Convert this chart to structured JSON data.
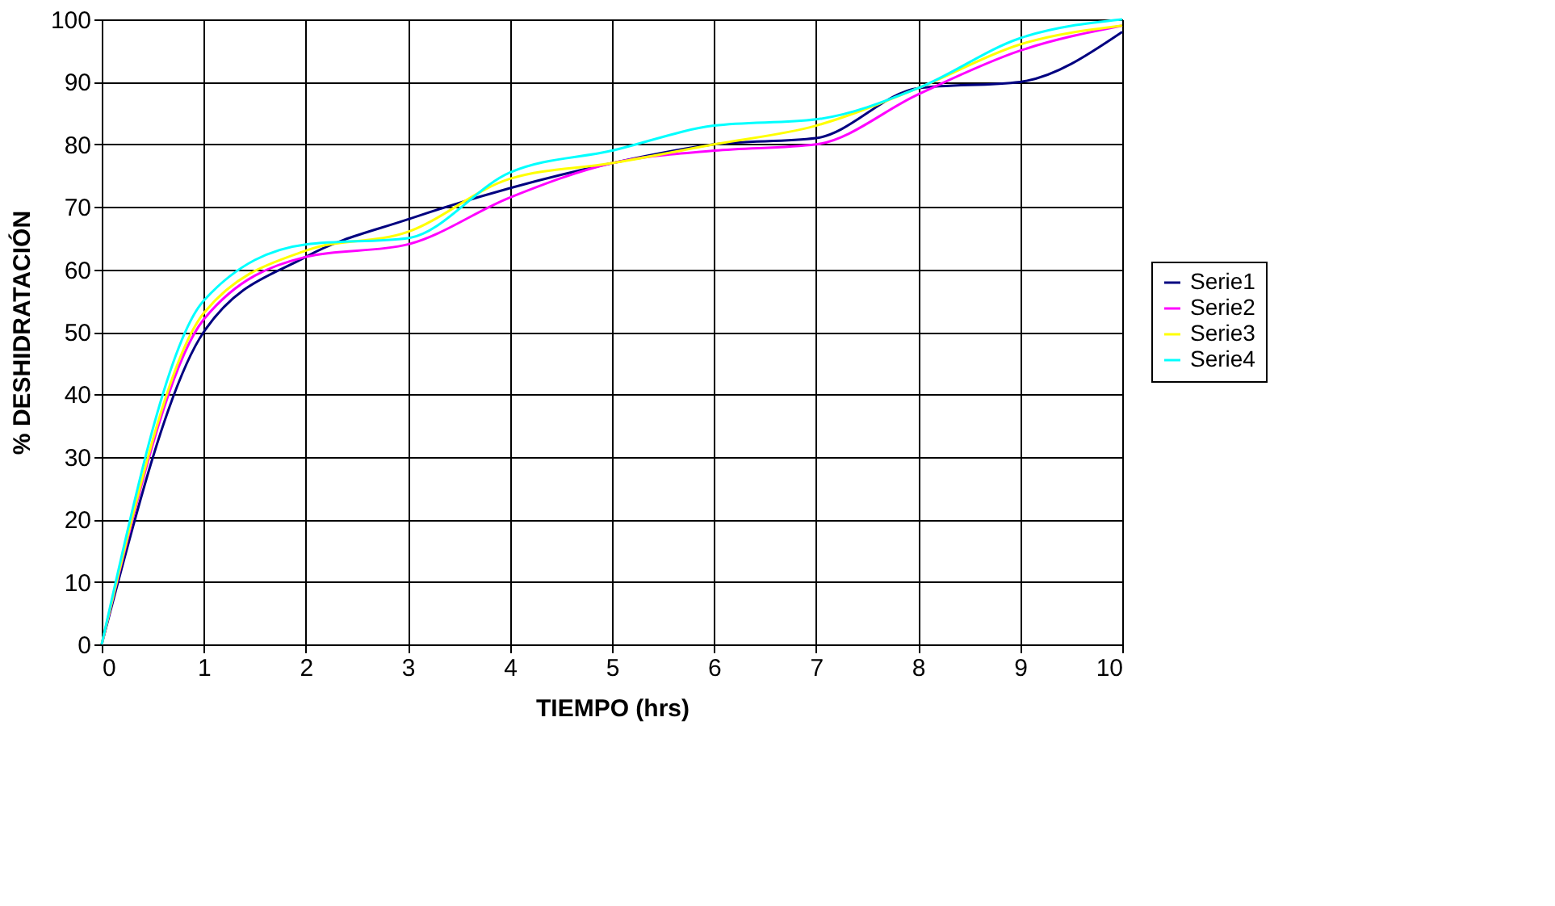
{
  "chart_data": {
    "type": "line",
    "xlabel": "TIEMPO (hrs)",
    "ylabel": "% DESHIDRATACIÓN",
    "x": [
      0,
      1,
      2,
      3,
      4,
      5,
      6,
      7,
      8,
      9,
      10
    ],
    "series": [
      {
        "name": "Serie1",
        "color": "#000080",
        "values": [
          0,
          50,
          62,
          68,
          73,
          77,
          80,
          81,
          89,
          90,
          98
        ]
      },
      {
        "name": "Serie2",
        "color": "#ff00ff",
        "values": [
          0,
          52,
          62,
          64,
          71.5,
          77,
          79,
          80,
          88,
          95,
          99
        ]
      },
      {
        "name": "Serie3",
        "color": "#ffff00",
        "values": [
          0,
          53,
          63,
          66,
          74.5,
          77,
          80,
          83,
          89,
          96,
          99
        ]
      },
      {
        "name": "Serie4",
        "color": "#00ffff",
        "values": [
          0,
          55,
          64,
          65,
          75.5,
          79,
          83,
          84,
          89,
          97,
          100
        ]
      }
    ],
    "xlim": [
      0,
      10
    ],
    "xticks": [
      0,
      1,
      2,
      3,
      4,
      5,
      6,
      7,
      8,
      9,
      10
    ],
    "ylim": [
      0,
      100
    ],
    "yticks": [
      0,
      10,
      20,
      30,
      40,
      50,
      60,
      70,
      80,
      90,
      100
    ],
    "grid": true,
    "legend": "right",
    "marker": "none",
    "line_style": "solid"
  }
}
